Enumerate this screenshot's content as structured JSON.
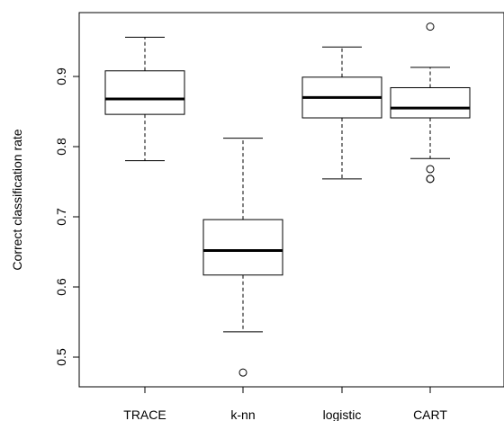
{
  "chart_data": {
    "type": "boxplot",
    "title": "",
    "xlabel": "",
    "ylabel": "Correct classification rate",
    "ylim": [
      0.45,
      1.0
    ],
    "yticks": [
      0.5,
      0.6,
      0.7,
      0.8,
      0.9
    ],
    "ytick_labels": [
      "0.5",
      "0.6",
      "0.7",
      "0.8",
      "0.9"
    ],
    "categories": [
      "TRACE",
      "k-nn",
      "logistic",
      "CART"
    ],
    "boxes": [
      {
        "name": "TRACE",
        "whisker_low": 0.78,
        "q1": 0.846,
        "median": 0.868,
        "q3": 0.908,
        "whisker_high": 0.956,
        "outliers": []
      },
      {
        "name": "k-nn",
        "whisker_low": 0.536,
        "q1": 0.617,
        "median": 0.652,
        "q3": 0.696,
        "whisker_high": 0.812,
        "outliers": [
          0.478
        ]
      },
      {
        "name": "logistic",
        "whisker_low": 0.754,
        "q1": 0.841,
        "median": 0.87,
        "q3": 0.899,
        "whisker_high": 0.942,
        "outliers": []
      },
      {
        "name": "CART",
        "whisker_low": 0.783,
        "q1": 0.841,
        "median": 0.855,
        "q3": 0.884,
        "whisker_high": 0.913,
        "outliers": [
          0.971,
          0.768,
          0.754,
          0.754
        ]
      }
    ],
    "grid": false,
    "legend": "none"
  }
}
